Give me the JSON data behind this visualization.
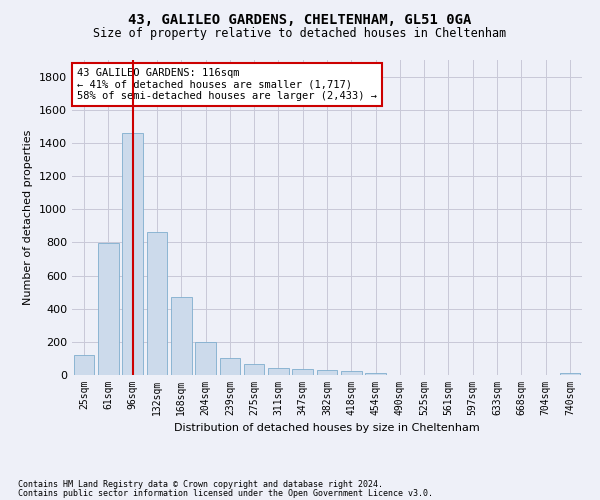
{
  "title": "43, GALILEO GARDENS, CHELTENHAM, GL51 0GA",
  "subtitle": "Size of property relative to detached houses in Cheltenham",
  "xlabel": "Distribution of detached houses by size in Cheltenham",
  "ylabel": "Number of detached properties",
  "footer1": "Contains HM Land Registry data © Crown copyright and database right 2024.",
  "footer2": "Contains public sector information licensed under the Open Government Licence v3.0.",
  "categories": [
    "25sqm",
    "61sqm",
    "96sqm",
    "132sqm",
    "168sqm",
    "204sqm",
    "239sqm",
    "275sqm",
    "311sqm",
    "347sqm",
    "382sqm",
    "418sqm",
    "454sqm",
    "490sqm",
    "525sqm",
    "561sqm",
    "597sqm",
    "633sqm",
    "668sqm",
    "704sqm",
    "740sqm"
  ],
  "values": [
    120,
    795,
    1460,
    860,
    470,
    200,
    100,
    65,
    45,
    35,
    30,
    22,
    10,
    2,
    1,
    1,
    1,
    1,
    1,
    1,
    15
  ],
  "bar_color": "#ccdaeb",
  "bar_edge_color": "#7faece",
  "grid_color": "#c8c8d8",
  "background_color": "#eef0f8",
  "ref_line_x": 2.0,
  "ref_line_color": "#cc0000",
  "annotation_text": "43 GALILEO GARDENS: 116sqm\n← 41% of detached houses are smaller (1,717)\n58% of semi-detached houses are larger (2,433) →",
  "annotation_box_color": "#cc0000",
  "ylim": [
    0,
    1900
  ],
  "yticks": [
    0,
    200,
    400,
    600,
    800,
    1000,
    1200,
    1400,
    1600,
    1800
  ]
}
